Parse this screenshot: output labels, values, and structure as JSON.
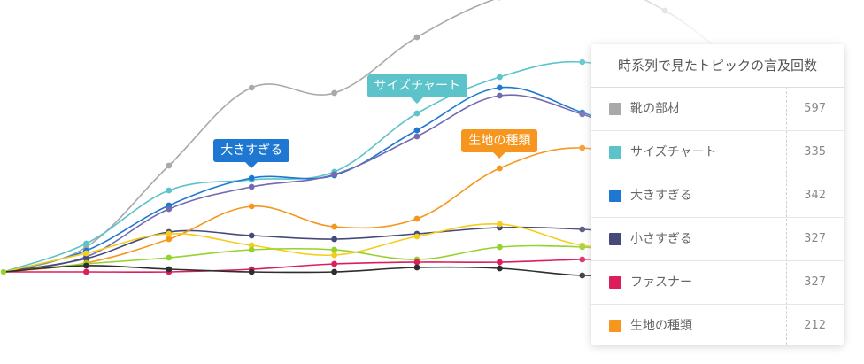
{
  "chart_data": {
    "type": "line",
    "x": [
      0,
      1,
      2,
      3,
      4,
      5,
      6,
      7,
      8,
      9,
      10
    ],
    "series": [
      {
        "name": "靴の部材",
        "color": "#a9a9a9",
        "values": [
          0,
          28,
          120,
          208,
          202,
          265,
          310,
          330,
          295,
          225,
          160
        ]
      },
      {
        "name": "サイズチャート",
        "color": "#5bc3c9",
        "values": [
          0,
          32,
          92,
          104,
          113,
          179,
          220,
          237,
          207,
          145,
          110
        ]
      },
      {
        "name": "大きすぎる",
        "color": "#1e78d2",
        "values": [
          0,
          24,
          75,
          106,
          109,
          160,
          208,
          180,
          145,
          115,
          80
        ]
      },
      {
        "name": "小さすぎる",
        "color": "#736ab0",
        "values": [
          0,
          17,
          71,
          96,
          110,
          153,
          199,
          178,
          140,
          110,
          75
        ]
      },
      {
        "name": "",
        "color": "#454a7a",
        "values": [
          0,
          15,
          45,
          41,
          37,
          43,
          50,
          48,
          40,
          30,
          15
        ]
      },
      {
        "name": "生地の種類",
        "color": "#f7961e",
        "values": [
          0,
          10,
          37,
          74,
          51,
          60,
          117,
          140,
          110,
          70,
          30
        ]
      },
      {
        "name": "",
        "color": "#f5cd19",
        "values": [
          0,
          21,
          43,
          30,
          19,
          40,
          54,
          30,
          25,
          15,
          5
        ]
      },
      {
        "name": "",
        "color": "#96d22d",
        "values": [
          0,
          9,
          16,
          25,
          25,
          14,
          28,
          28,
          20,
          15,
          8
        ]
      },
      {
        "name": "ファスナー",
        "color": "#dc1e5a",
        "values": [
          0,
          0,
          0,
          3,
          9,
          11,
          11,
          14,
          15,
          12,
          10
        ]
      },
      {
        "name": "",
        "color": "#2d2d2d",
        "values": [
          0,
          7,
          3,
          0,
          0,
          5,
          4,
          -4,
          -3,
          -2,
          0
        ]
      }
    ],
    "callouts": [
      {
        "series": "サイズチャート",
        "label": "サイズチャート",
        "point": 5
      },
      {
        "series": "大きすぎる",
        "label": "大きすぎる",
        "point": 3
      },
      {
        "series": "生地の種類",
        "label": "生地の種類",
        "point": 6
      }
    ]
  },
  "legend_panel": {
    "title": "時系列で見たトピックの言及回数",
    "rows": [
      {
        "label": "靴の部材",
        "count": "597",
        "color": "#a9a9a9"
      },
      {
        "label": "サイズチャート",
        "count": "335",
        "color": "#5bc3c9"
      },
      {
        "label": "大きすぎる",
        "count": "342",
        "color": "#1e78d2"
      },
      {
        "label": "小さすぎる",
        "count": "327",
        "color": "#454a7a"
      },
      {
        "label": "ファスナー",
        "count": "327",
        "color": "#dc1e5a"
      },
      {
        "label": "生地の種類",
        "count": "212",
        "color": "#f7961e"
      }
    ]
  }
}
